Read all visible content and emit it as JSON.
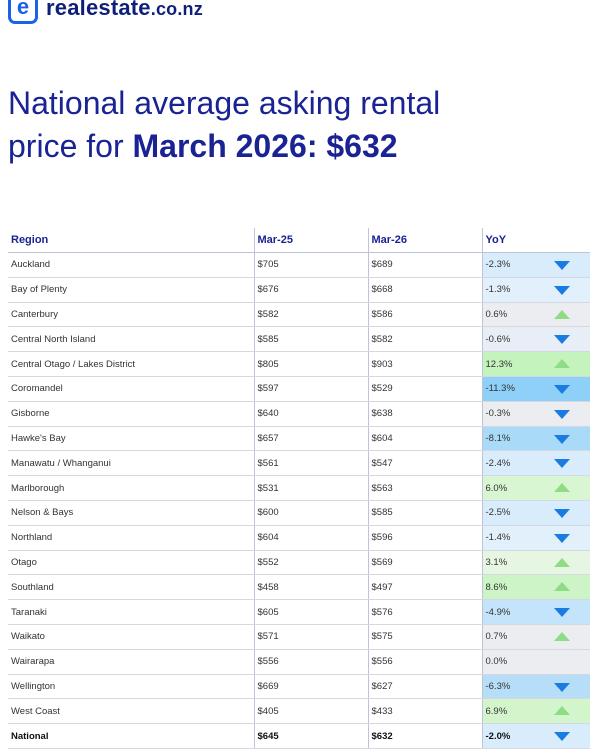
{
  "brand": {
    "mark": "e",
    "name": "realestate",
    "suffix": ".co.nz"
  },
  "headline": {
    "line1": "National average asking rental",
    "line2_prefix": "price for ",
    "line2_bold": "March 2026: $632"
  },
  "table": {
    "headers": [
      "Region",
      "Mar-25",
      "Mar-26",
      "YoY"
    ],
    "rows": [
      {
        "region": "Auckland",
        "mar25": "$705",
        "mar26": "$689",
        "yoy": "-2.3%",
        "dir": "down",
        "bg": "#d8ecfb"
      },
      {
        "region": "Bay of Plenty",
        "mar25": "$676",
        "mar26": "$668",
        "yoy": "-1.3%",
        "dir": "down",
        "bg": "#e2f0fb"
      },
      {
        "region": "Canterbury",
        "mar25": "$582",
        "mar26": "$586",
        "yoy": "0.6%",
        "dir": "up",
        "bg": "#ebedf1"
      },
      {
        "region": "Central North Island",
        "mar25": "$585",
        "mar26": "$582",
        "yoy": "-0.6%",
        "dir": "down",
        "bg": "#e8eef6"
      },
      {
        "region": "Central Otago / Lakes District",
        "mar25": "$805",
        "mar26": "$903",
        "yoy": "12.3%",
        "dir": "up",
        "bg": "#c4f3bd"
      },
      {
        "region": "Coromandel",
        "mar25": "$597",
        "mar26": "$529",
        "yoy": "-11.3%",
        "dir": "down",
        "bg": "#8fd0f8"
      },
      {
        "region": "Gisborne",
        "mar25": "$640",
        "mar26": "$638",
        "yoy": "-0.3%",
        "dir": "down",
        "bg": "#ebedf1"
      },
      {
        "region": "Hawke's Bay",
        "mar25": "$657",
        "mar26": "$604",
        "yoy": "-8.1%",
        "dir": "down",
        "bg": "#a9daf8"
      },
      {
        "region": "Manawatu / Whanganui",
        "mar25": "$561",
        "mar26": "$547",
        "yoy": "-2.4%",
        "dir": "down",
        "bg": "#d8ecfb"
      },
      {
        "region": "Marlborough",
        "mar25": "$531",
        "mar26": "$563",
        "yoy": "6.0%",
        "dir": "up",
        "bg": "#d8f6d1"
      },
      {
        "region": "Nelson & Bays",
        "mar25": "$600",
        "mar26": "$585",
        "yoy": "-2.5%",
        "dir": "down",
        "bg": "#d8ecfb"
      },
      {
        "region": "Northland",
        "mar25": "$604",
        "mar26": "$596",
        "yoy": "-1.4%",
        "dir": "down",
        "bg": "#e2f0fb"
      },
      {
        "region": "Otago",
        "mar25": "$552",
        "mar26": "$569",
        "yoy": "3.1%",
        "dir": "up",
        "bg": "#e6f6e2"
      },
      {
        "region": "Southland",
        "mar25": "$458",
        "mar26": "$497",
        "yoy": "8.6%",
        "dir": "up",
        "bg": "#cdf4c6"
      },
      {
        "region": "Taranaki",
        "mar25": "$605",
        "mar26": "$576",
        "yoy": "-4.9%",
        "dir": "down",
        "bg": "#c3e4fa"
      },
      {
        "region": "Waikato",
        "mar25": "$571",
        "mar26": "$575",
        "yoy": "0.7%",
        "dir": "up",
        "bg": "#ebedf1"
      },
      {
        "region": "Wairarapa",
        "mar25": "$556",
        "mar26": "$556",
        "yoy": "0.0%",
        "dir": "none",
        "bg": "#ebedf1"
      },
      {
        "region": "Wellington",
        "mar25": "$669",
        "mar26": "$627",
        "yoy": "-6.3%",
        "dir": "down",
        "bg": "#b6def9"
      },
      {
        "region": "West Coast",
        "mar25": "$405",
        "mar26": "$433",
        "yoy": "6.9%",
        "dir": "up",
        "bg": "#d3f5cb"
      },
      {
        "region": "National",
        "mar25": "$645",
        "mar26": "$632",
        "yoy": "-2.0%",
        "dir": "down",
        "bg": "#d8ecfb",
        "national": true
      }
    ]
  }
}
